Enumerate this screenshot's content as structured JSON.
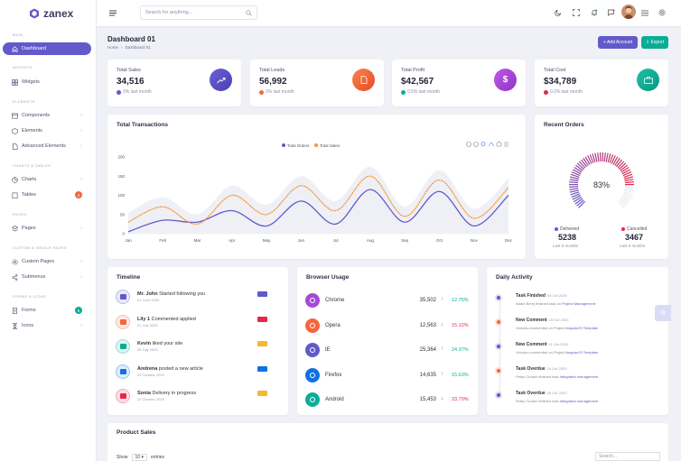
{
  "app": {
    "name": "zanex",
    "brand": "#6259ca"
  },
  "sidebar": {
    "sections": [
      "MAIN",
      "WIDGETS",
      "ELEMENTS",
      "CHARTS & TABLES",
      "PAGES",
      "CUSTOM & SINGLE PAGES",
      "FORMS & ICONS"
    ],
    "items": [
      {
        "label": "Dashboard",
        "icon": "home-icon"
      },
      {
        "label": "Widgets",
        "icon": "grid-icon"
      },
      {
        "label": "Components",
        "icon": "layers-icon"
      },
      {
        "label": "Elements",
        "icon": "package-icon"
      },
      {
        "label": "Advanced Elements",
        "icon": "file-icon"
      },
      {
        "label": "Charts",
        "icon": "pie-chart-icon"
      },
      {
        "label": "Tables",
        "icon": "clipboard-icon",
        "badge": "2"
      },
      {
        "label": "Pages",
        "icon": "layers-icon"
      },
      {
        "label": "Custom Pages",
        "icon": "settings-icon"
      },
      {
        "label": "Submenus",
        "icon": "share-icon"
      },
      {
        "label": "Forms",
        "icon": "file-text-icon",
        "badge": "5"
      },
      {
        "label": "Icons",
        "icon": "command-icon"
      }
    ]
  },
  "header": {
    "search_placeholder": "Search for anything..."
  },
  "page": {
    "title": "Dashboard 01",
    "breadcrumb_home": "Home",
    "breadcrumb_current": "Dashboard 01",
    "add_account": "+ Add Account",
    "export": "⇩ Export"
  },
  "stats": [
    {
      "label": "Total Sales",
      "value": "34,516",
      "sub": "3% last month",
      "color": "#6259ca"
    },
    {
      "label": "Total Leads",
      "value": "56,992",
      "sub": "3% last month",
      "color": "#f7653c"
    },
    {
      "label": "Total Profit",
      "value": "$42,567",
      "sub": "0.5% last month",
      "color": "#a44ad6"
    },
    {
      "label": "Total Cost",
      "value": "$34,789",
      "sub": "0.2% last month",
      "color": "#09ad95"
    }
  ],
  "transactions": {
    "title": "Total Transactions",
    "legend": [
      "Total Orders",
      "Total Sales"
    ]
  },
  "chart_data": {
    "type": "line",
    "categories": [
      "Jan",
      "Feb",
      "Mar",
      "Apr",
      "May",
      "Jun",
      "Jul",
      "Aug",
      "Sep",
      "Oct",
      "Nov",
      "Dec"
    ],
    "ylim": [
      0,
      200
    ],
    "yticks": [
      0,
      50,
      100,
      150,
      200
    ],
    "series": [
      {
        "name": "Total Orders",
        "color": "#6259ca",
        "values": [
          5,
          35,
          30,
          60,
          20,
          85,
          25,
          115,
          30,
          110,
          20,
          100
        ]
      },
      {
        "name": "Total Sales",
        "color": "#f99433",
        "values": [
          30,
          70,
          25,
          100,
          50,
          125,
          60,
          150,
          45,
          140,
          40,
          120
        ]
      }
    ]
  },
  "recent_orders": {
    "title": "Recent Orders",
    "percent": "83%",
    "percent_value": 83,
    "delivered_label": "Delivered",
    "delivered_value": "5238",
    "delivered_sub": "Last 6 months",
    "cancelled_label": "Cancelled",
    "cancelled_value": "3467",
    "cancelled_sub": "Last 6 months"
  },
  "timeline": {
    "title": "Timeline",
    "items": [
      {
        "name": "Mr. John",
        "action": " Started following you",
        "date": "01 June 2020",
        "color": "#6259ca"
      },
      {
        "name": "Lily 1",
        "action": " Commented applied",
        "date": "01 July 2020",
        "color": "#f7653c"
      },
      {
        "name": "Kevin",
        "action": " liked your site",
        "date": "05 July 2020",
        "color": "#09ad95"
      },
      {
        "name": "Andrena",
        "action": " posted a new article",
        "date": "09 October 2020",
        "color": "#1170e4"
      },
      {
        "name": "Sonia",
        "action": " Delivery in progress",
        "date": "12 October 2020",
        "color": "#e82646"
      }
    ]
  },
  "browser": {
    "title": "Browser Usage",
    "items": [
      {
        "name": "Chrome",
        "value": "35,502",
        "pct": "12.75%",
        "dir": "up",
        "color": "#a44ad6"
      },
      {
        "name": "Opera",
        "value": "12,563",
        "pct": "15.12%",
        "dir": "down",
        "color": "#f7653c"
      },
      {
        "name": "IE",
        "value": "25,364",
        "pct": "24.37%",
        "dir": "up",
        "color": "#6259ca"
      },
      {
        "name": "Firefox",
        "value": "14,635",
        "pct": "15.63%",
        "dir": "up",
        "color": "#1170e4"
      },
      {
        "name": "Android",
        "value": "15,453",
        "pct": "23.70%",
        "dir": "down",
        "color": "#09ad95"
      }
    ]
  },
  "activity": {
    "title": "Daily Activity",
    "items": [
      {
        "title": "Task Finished",
        "date": "09 Oct 2020",
        "desc": "Adam Berry finished task on ",
        "link": "Project Management",
        "color": "#6259ca"
      },
      {
        "title": "New Comment",
        "date": "15 Oct 2020",
        "desc": "Victoria commented on Project ",
        "link": "AngularJS Template",
        "color": "#f7653c"
      },
      {
        "title": "New Comment",
        "date": "11 Oct 2020",
        "desc": "Victoria commented on Project ",
        "link": "AngularJS Template",
        "color": "#6259ca"
      },
      {
        "title": "Task Overdue",
        "date": "14 Oct 2020",
        "desc": "Petey Cruiser finished task ",
        "link": "Integrated management",
        "color": "#f7653c"
      },
      {
        "title": "Task Overdue",
        "date": "29 Oct 2020",
        "desc": "Petey Cruiser finished task ",
        "link": "Integrated management",
        "color": "#6259ca"
      }
    ]
  },
  "product": {
    "title": "Product Sales",
    "show": "Show",
    "entries_val": "10",
    "entries": "entries",
    "search": "Search..."
  }
}
